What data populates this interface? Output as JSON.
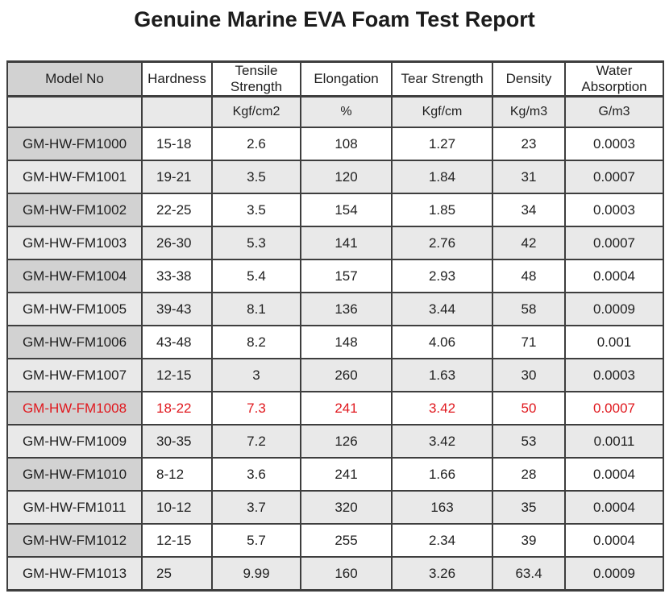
{
  "title": "Genuine Marine EVA Foam Test Report",
  "colors": {
    "highlight_red": "#e0181e",
    "model_column_bg": "#d2d2d2",
    "alt_row_bg": "#e9e9e9",
    "border": "#3e3e3e",
    "text": "#1f1f1f"
  },
  "table": {
    "columns": [
      {
        "label": "Model No",
        "unit": ""
      },
      {
        "label": "Hardness",
        "unit": ""
      },
      {
        "label": "Tensile Strength",
        "unit": "Kgf/cm2"
      },
      {
        "label": "Elongation",
        "unit": "%"
      },
      {
        "label": "Tear Strength",
        "unit": "Kgf/cm"
      },
      {
        "label": "Density",
        "unit": "Kg/m3"
      },
      {
        "label": "Water Absorption",
        "unit": "G/m3"
      }
    ],
    "rows": [
      {
        "model": "GM-HW-FM1000",
        "hardness": "15-18",
        "tensile": "2.6",
        "elongation": "108",
        "tear": "1.27",
        "density": "23",
        "water": "0.0003",
        "highlight": false
      },
      {
        "model": "GM-HW-FM1001",
        "hardness": "19-21",
        "tensile": "3.5",
        "elongation": "120",
        "tear": "1.84",
        "density": "31",
        "water": "0.0007",
        "highlight": false
      },
      {
        "model": "GM-HW-FM1002",
        "hardness": "22-25",
        "tensile": "3.5",
        "elongation": "154",
        "tear": "1.85",
        "density": "34",
        "water": "0.0003",
        "highlight": false
      },
      {
        "model": "GM-HW-FM1003",
        "hardness": "26-30",
        "tensile": "5.3",
        "elongation": "141",
        "tear": "2.76",
        "density": "42",
        "water": "0.0007",
        "highlight": false
      },
      {
        "model": "GM-HW-FM1004",
        "hardness": "33-38",
        "tensile": "5.4",
        "elongation": "157",
        "tear": "2.93",
        "density": "48",
        "water": "0.0004",
        "highlight": false
      },
      {
        "model": "GM-HW-FM1005",
        "hardness": "39-43",
        "tensile": "8.1",
        "elongation": "136",
        "tear": "3.44",
        "density": "58",
        "water": "0.0009",
        "highlight": false
      },
      {
        "model": "GM-HW-FM1006",
        "hardness": "43-48",
        "tensile": "8.2",
        "elongation": "148",
        "tear": "4.06",
        "density": "71",
        "water": "0.001",
        "highlight": false
      },
      {
        "model": "GM-HW-FM1007",
        "hardness": "12-15",
        "tensile": "3",
        "elongation": "260",
        "tear": "1.63",
        "density": "30",
        "water": "0.0003",
        "highlight": false
      },
      {
        "model": "GM-HW-FM1008",
        "hardness": "18-22",
        "tensile": "7.3",
        "elongation": "241",
        "tear": "3.42",
        "density": "50",
        "water": "0.0007",
        "highlight": true
      },
      {
        "model": "GM-HW-FM1009",
        "hardness": "30-35",
        "tensile": "7.2",
        "elongation": "126",
        "tear": "3.42",
        "density": "53",
        "water": "0.0011",
        "highlight": false
      },
      {
        "model": "GM-HW-FM1010",
        "hardness": "8-12",
        "tensile": "3.6",
        "elongation": "241",
        "tear": "1.66",
        "density": "28",
        "water": "0.0004",
        "highlight": false
      },
      {
        "model": "GM-HW-FM1011",
        "hardness": "10-12",
        "tensile": "3.7",
        "elongation": "320",
        "tear": "163",
        "density": "35",
        "water": "0.0004",
        "highlight": false
      },
      {
        "model": "GM-HW-FM1012",
        "hardness": "12-15",
        "tensile": "5.7",
        "elongation": "255",
        "tear": "2.34",
        "density": "39",
        "water": "0.0004",
        "highlight": false
      },
      {
        "model": "GM-HW-FM1013",
        "hardness": "25",
        "tensile": "9.99",
        "elongation": "160",
        "tear": "3.26",
        "density": "63.4",
        "water": "0.0009",
        "highlight": false
      }
    ]
  }
}
